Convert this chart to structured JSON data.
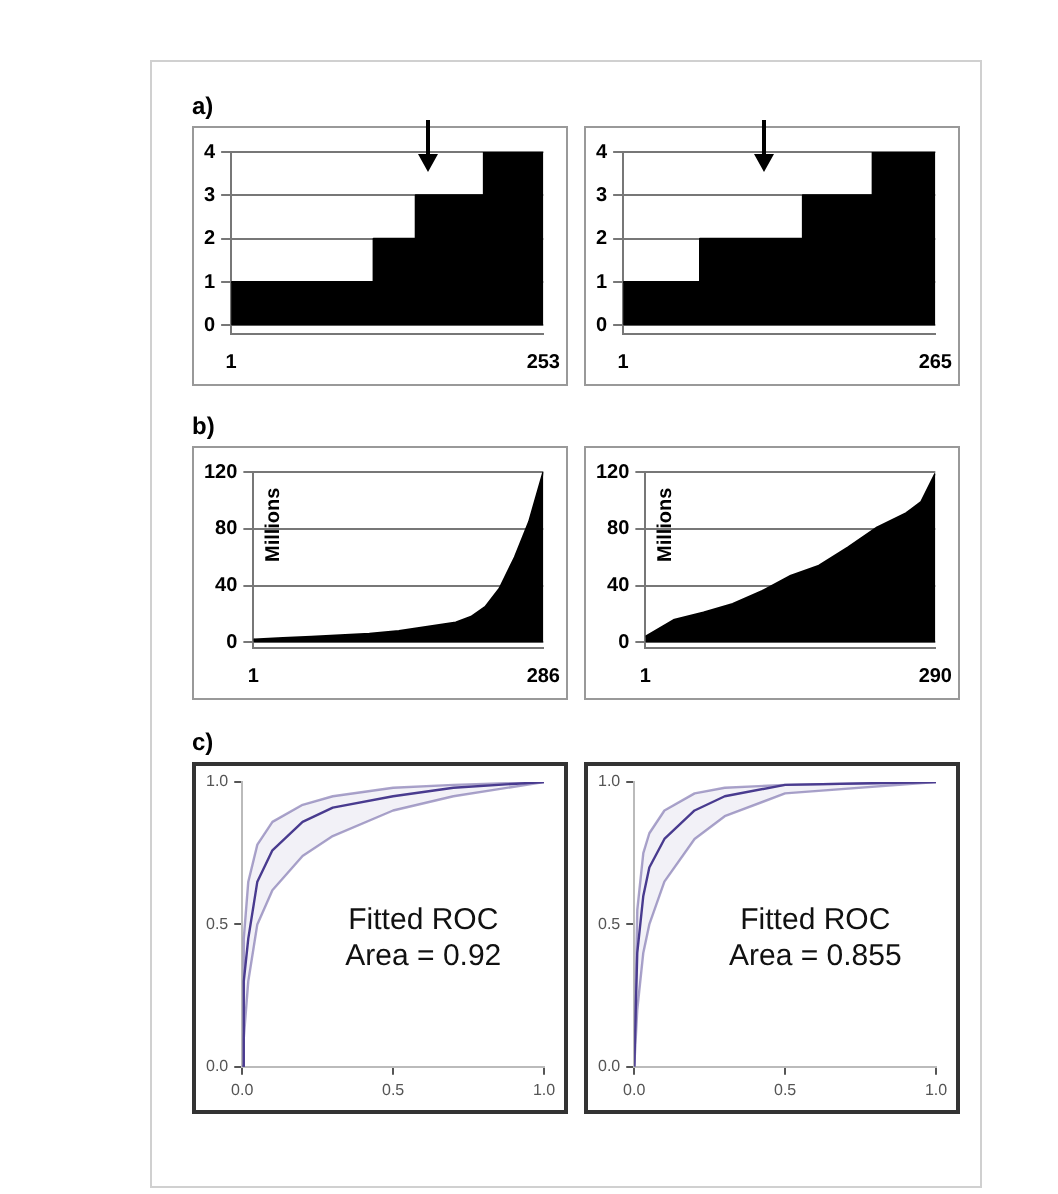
{
  "chart_data": [
    {
      "type": "area",
      "title": "a)",
      "x": [
        1,
        116,
        116,
        150,
        150,
        205,
        205,
        253
      ],
      "values": [
        1,
        1,
        2,
        2,
        3,
        3,
        4,
        4
      ],
      "color": "#000000",
      "xlim": [
        1,
        253
      ],
      "xticks": [
        1,
        253
      ],
      "ylim": [
        -0.2,
        4
      ],
      "yticks": [
        0,
        1,
        2,
        3,
        4
      ],
      "grid": "y",
      "marker": "none"
    },
    {
      "type": "area",
      "x": [
        1,
        66,
        66,
        153,
        153,
        212,
        212,
        265
      ],
      "values": [
        1,
        1,
        2,
        2,
        3,
        3,
        4,
        4
      ],
      "color": "#000000",
      "xlim": [
        1,
        265
      ],
      "xticks": [
        1,
        265
      ],
      "ylim": [
        -0.2,
        4
      ],
      "yticks": [
        0,
        1,
        2,
        3,
        4
      ],
      "grid": "y",
      "marker": "none"
    },
    {
      "type": "area",
      "title": "b)",
      "ylabel": "Millions",
      "x": [
        1,
        30,
        58,
        115,
        144,
        172,
        200,
        215,
        229,
        243,
        258,
        272,
        286
      ],
      "values": [
        2,
        3,
        4,
        6,
        8,
        11,
        14,
        18,
        25,
        38,
        60,
        85,
        120
      ],
      "color": "#000000",
      "xlim": [
        1,
        286
      ],
      "xticks": [
        1,
        286
      ],
      "ylim": [
        -4,
        120
      ],
      "yticks": [
        0,
        40,
        80,
        120
      ],
      "grid": "y",
      "marker": "none"
    },
    {
      "type": "area",
      "ylabel": "Millions",
      "x": [
        1,
        30,
        59,
        88,
        117,
        146,
        174,
        203,
        232,
        261,
        276,
        290
      ],
      "values": [
        4,
        16,
        21,
        27,
        36,
        47,
        54,
        67,
        81,
        91,
        99,
        119
      ],
      "color": "#000000",
      "xlim": [
        1,
        290
      ],
      "xticks": [
        1,
        290
      ],
      "ylim": [
        -4,
        120
      ],
      "yticks": [
        0,
        40,
        80,
        120
      ],
      "grid": "y",
      "marker": "none"
    },
    {
      "type": "line",
      "title": "c)",
      "annotations": [
        "Fitted ROC",
        "Area = 0.92"
      ],
      "series": [
        {
          "color": "#4a3c90",
          "x": [
            0,
            0.005,
            0.02,
            0.05,
            0.1,
            0.2,
            0.3,
            0.5,
            0.7,
            1
          ],
          "values": [
            0,
            0.3,
            0.45,
            0.65,
            0.76,
            0.86,
            0.91,
            0.95,
            0.98,
            1
          ],
          "upper": [
            0,
            0.45,
            0.65,
            0.78,
            0.86,
            0.92,
            0.95,
            0.98,
            0.99,
            1
          ],
          "lower": [
            0,
            0.1,
            0.3,
            0.5,
            0.62,
            0.74,
            0.81,
            0.9,
            0.95,
            1
          ]
        }
      ],
      "xlim": [
        0,
        1
      ],
      "xticks": [
        {
          "value": 0,
          "label": "0.0"
        },
        {
          "value": 0.5,
          "label": "0.5"
        },
        {
          "value": 1,
          "label": "1.0"
        }
      ],
      "ylim": [
        0,
        1
      ],
      "yticks": [
        {
          "value": 0,
          "label": "0.0"
        },
        {
          "value": 0.5,
          "label": "0.5"
        },
        {
          "value": 1,
          "label": "1.0"
        }
      ],
      "marker": "none"
    },
    {
      "type": "line",
      "annotations": [
        "Fitted ROC",
        "Area = 0.855"
      ],
      "series": [
        {
          "color": "#4a3c90",
          "x": [
            0,
            0.01,
            0.03,
            0.05,
            0.1,
            0.2,
            0.3,
            0.5,
            1
          ],
          "values": [
            0,
            0.4,
            0.6,
            0.7,
            0.8,
            0.9,
            0.95,
            0.99,
            1
          ],
          "upper": [
            0,
            0.55,
            0.75,
            0.82,
            0.9,
            0.96,
            0.98,
            0.99,
            1
          ],
          "lower": [
            0,
            0.2,
            0.4,
            0.5,
            0.65,
            0.8,
            0.88,
            0.96,
            1
          ]
        }
      ],
      "xlim": [
        0,
        1
      ],
      "xticks": [
        {
          "value": 0,
          "label": "0.0"
        },
        {
          "value": 0.5,
          "label": "0.5"
        },
        {
          "value": 1,
          "label": "1.0"
        }
      ],
      "ylim": [
        0,
        1
      ],
      "yticks": [
        {
          "value": 0,
          "label": "0.0"
        },
        {
          "value": 0.5,
          "label": "0.5"
        },
        {
          "value": 1,
          "label": "1.0"
        }
      ],
      "marker": "none"
    }
  ]
}
